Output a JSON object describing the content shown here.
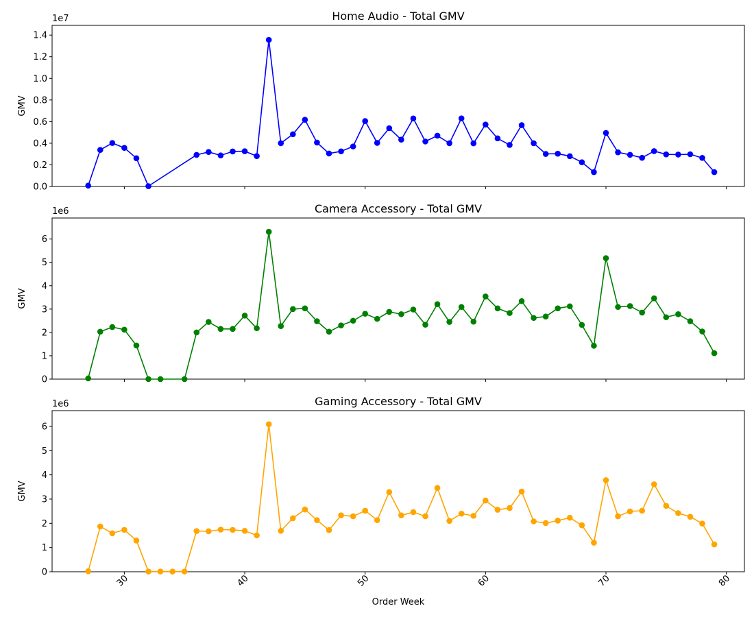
{
  "chart_data": [
    {
      "type": "line",
      "title": "Home Audio - Total GMV",
      "ylabel": "GMV",
      "xlabel": "",
      "scale_label": "1e7",
      "scale": 10000000,
      "color": "#0000ff",
      "xlim": [
        24,
        81.5
      ],
      "ylim": [
        0,
        14900000
      ],
      "yticks": [
        0,
        2000000,
        4000000,
        6000000,
        8000000,
        10000000,
        12000000,
        14000000
      ],
      "ytick_labels": [
        "0.0",
        "0.2",
        "0.4",
        "0.6",
        "0.8",
        "1.0",
        "1.2",
        "1.4"
      ],
      "xticks": [
        30,
        40,
        50,
        60,
        70,
        80
      ],
      "show_xtick_labels": false,
      "x": [
        27,
        28,
        29,
        30,
        31,
        32,
        36,
        37,
        38,
        39,
        40,
        41,
        42,
        43,
        44,
        45,
        46,
        47,
        48,
        49,
        50,
        51,
        52,
        53,
        54,
        55,
        56,
        57,
        58,
        59,
        60,
        61,
        62,
        63,
        64,
        65,
        66,
        67,
        68,
        69,
        70,
        71,
        72,
        73,
        74,
        75,
        76,
        77,
        78,
        79
      ],
      "y": [
        80000,
        3380000,
        4020000,
        3570000,
        2610000,
        30000,
        2920000,
        3190000,
        2870000,
        3240000,
        3260000,
        2810000,
        13560000,
        4000000,
        4830000,
        6170000,
        4060000,
        3050000,
        3250000,
        3700000,
        6050000,
        4030000,
        5390000,
        4330000,
        6290000,
        4160000,
        4700000,
        4000000,
        6300000,
        3990000,
        5730000,
        4450000,
        3840000,
        5670000,
        4000000,
        3010000,
        3030000,
        2800000,
        2240000,
        1330000,
        4950000,
        3160000,
        2930000,
        2650000,
        3270000,
        2970000,
        2950000,
        2980000,
        2640000,
        1330000
      ]
    },
    {
      "type": "line",
      "title": "Camera Accessory - Total GMV",
      "ylabel": "GMV",
      "xlabel": "",
      "scale_label": "1e6",
      "scale": 1000000,
      "color": "#008000",
      "xlim": [
        24,
        81.5
      ],
      "ylim": [
        0,
        6900000
      ],
      "yticks": [
        0,
        1000000,
        2000000,
        3000000,
        4000000,
        5000000,
        6000000
      ],
      "ytick_labels": [
        "0",
        "1",
        "2",
        "3",
        "4",
        "5",
        "6"
      ],
      "xticks": [
        30,
        40,
        50,
        60,
        70,
        80
      ],
      "show_xtick_labels": false,
      "x": [
        27,
        28,
        29,
        30,
        31,
        32,
        33,
        35,
        36,
        37,
        38,
        39,
        40,
        41,
        42,
        43,
        44,
        45,
        46,
        47,
        48,
        49,
        50,
        51,
        52,
        53,
        54,
        55,
        56,
        57,
        58,
        59,
        60,
        61,
        62,
        63,
        64,
        65,
        66,
        67,
        68,
        69,
        70,
        71,
        72,
        73,
        74,
        75,
        76,
        77,
        78,
        79
      ],
      "y": [
        30000,
        2030000,
        2230000,
        2120000,
        1440000,
        0,
        0,
        0,
        2000000,
        2450000,
        2150000,
        2150000,
        2720000,
        2180000,
        6310000,
        2270000,
        3000000,
        3030000,
        2480000,
        2030000,
        2300000,
        2500000,
        2800000,
        2580000,
        2880000,
        2780000,
        2980000,
        2330000,
        3210000,
        2450000,
        3090000,
        2460000,
        3540000,
        3030000,
        2830000,
        3340000,
        2620000,
        2680000,
        3030000,
        3120000,
        2320000,
        1430000,
        5180000,
        3090000,
        3130000,
        2850000,
        3460000,
        2650000,
        2780000,
        2480000,
        2040000,
        1110000
      ]
    },
    {
      "type": "line",
      "title": "Gaming Accessory - Total GMV",
      "ylabel": "GMV",
      "xlabel": "Order Week",
      "scale_label": "1e6",
      "scale": 1000000,
      "color": "#ffa500",
      "xlim": [
        24,
        81.5
      ],
      "ylim": [
        0,
        6650000
      ],
      "yticks": [
        0,
        1000000,
        2000000,
        3000000,
        4000000,
        5000000,
        6000000
      ],
      "ytick_labels": [
        "0",
        "1",
        "2",
        "3",
        "4",
        "5",
        "6"
      ],
      "xticks": [
        30,
        40,
        50,
        60,
        70,
        80
      ],
      "xtick_labels": [
        "30",
        "40",
        "50",
        "60",
        "70",
        "80"
      ],
      "show_xtick_labels": true,
      "x": [
        27,
        28,
        29,
        30,
        31,
        32,
        33,
        34,
        35,
        36,
        37,
        38,
        39,
        40,
        41,
        42,
        43,
        44,
        45,
        46,
        47,
        48,
        49,
        50,
        51,
        52,
        53,
        54,
        55,
        56,
        57,
        58,
        59,
        60,
        61,
        62,
        63,
        64,
        65,
        66,
        67,
        68,
        69,
        70,
        71,
        72,
        73,
        74,
        75,
        76,
        77,
        78,
        79
      ],
      "y": [
        20000,
        1870000,
        1590000,
        1730000,
        1290000,
        10000,
        10000,
        10000,
        10000,
        1680000,
        1670000,
        1740000,
        1730000,
        1690000,
        1500000,
        6090000,
        1690000,
        2210000,
        2570000,
        2130000,
        1720000,
        2330000,
        2290000,
        2520000,
        2130000,
        3290000,
        2330000,
        2460000,
        2290000,
        3460000,
        2100000,
        2400000,
        2310000,
        2940000,
        2560000,
        2630000,
        3310000,
        2080000,
        2010000,
        2110000,
        2230000,
        1920000,
        1200000,
        3780000,
        2290000,
        2490000,
        2520000,
        3610000,
        2720000,
        2420000,
        2270000,
        1990000,
        1130000
      ]
    }
  ]
}
